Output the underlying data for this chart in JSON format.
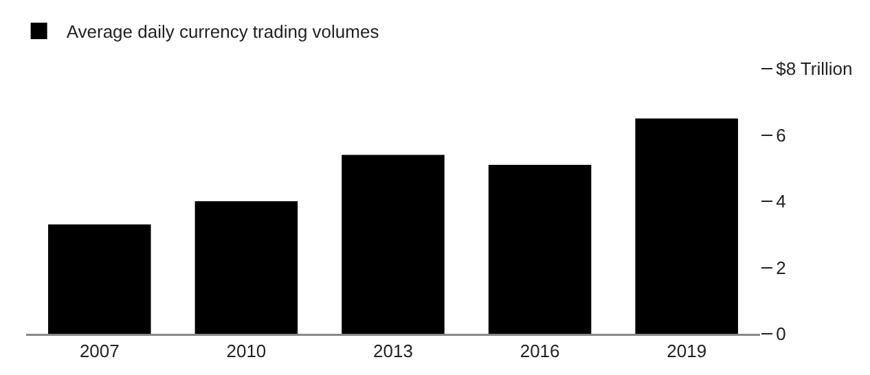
{
  "chart_data": {
    "type": "bar",
    "categories": [
      "2007",
      "2010",
      "2013",
      "2016",
      "2019"
    ],
    "series": [
      {
        "name": "Average daily currency trading volumes",
        "color": "#000000",
        "values": [
          3.3,
          4.0,
          5.4,
          5.1,
          6.5
        ]
      }
    ],
    "ylim": [
      0,
      8
    ],
    "yticks": [
      0,
      2,
      4,
      6,
      {
        "value": 8,
        "label": "$8 Trillion"
      }
    ],
    "grid": false,
    "legend": "top left"
  }
}
